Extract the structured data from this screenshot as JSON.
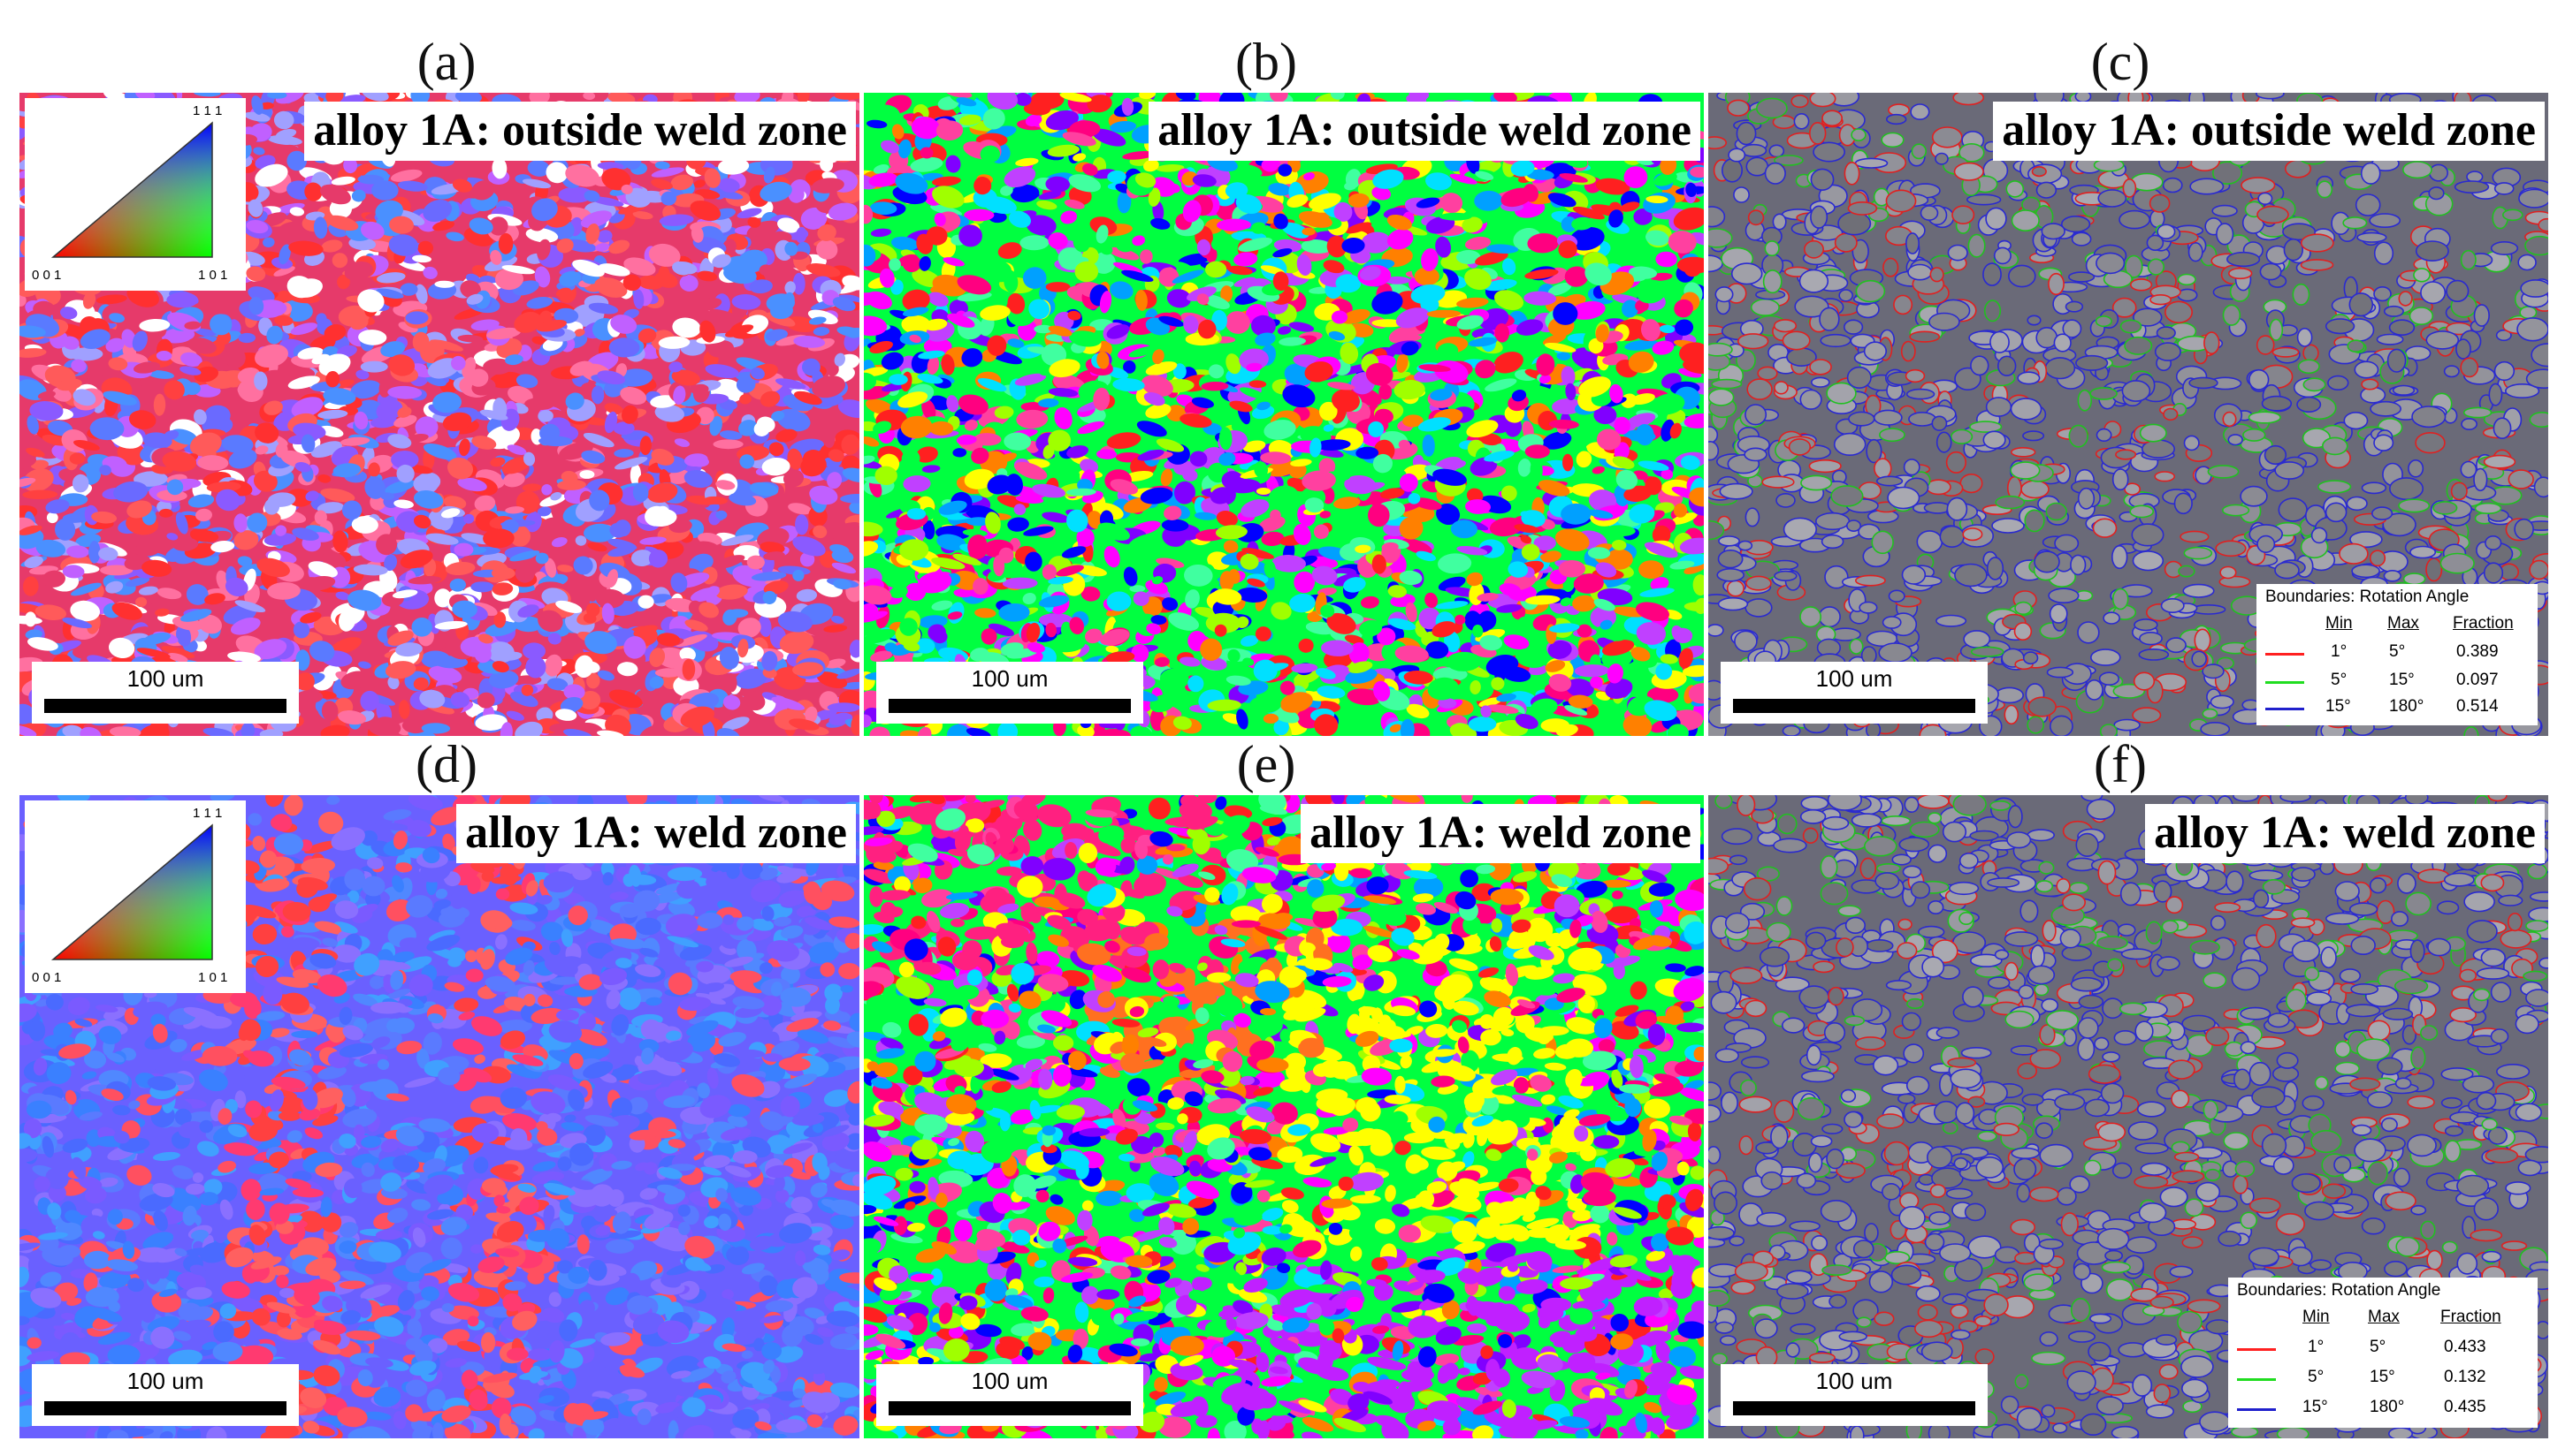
{
  "figure": {
    "panels": [
      {
        "caption": "(a)",
        "title": "alloy 1A: outside weld zone",
        "kind": "ipf-mixed",
        "scale_label": "100 um",
        "has_ipf_key": true
      },
      {
        "caption": "(b)",
        "title": "alloy 1A: outside weld zone",
        "kind": "grain-colors",
        "scale_label": "100 um"
      },
      {
        "caption": "(c)",
        "title": "alloy 1A: outside weld zone",
        "kind": "boundary",
        "scale_label": "100 um",
        "has_boundary_legend": true
      },
      {
        "caption": "(d)",
        "title": "alloy 1A: weld zone",
        "kind": "ipf-blue",
        "scale_label": "100 um",
        "has_ipf_key": true
      },
      {
        "caption": "(e)",
        "title": "alloy 1A: weld zone",
        "kind": "grain-colors-weld",
        "scale_label": "100 um"
      },
      {
        "caption": "(f)",
        "title": "alloy 1A: weld zone",
        "kind": "boundary",
        "scale_label": "100 um",
        "has_boundary_legend": true
      }
    ],
    "ipf_key": {
      "top": "1 1 1",
      "left": "0 0 1",
      "right": "1 0 1"
    },
    "boundary_legends": [
      {
        "title": "Boundaries: Rotation Angle",
        "headers": [
          "Min",
          "Max",
          "Fraction"
        ],
        "rows": [
          {
            "min": "1°",
            "max": "5°",
            "fraction": "0.389",
            "color": "#ff2020"
          },
          {
            "min": "5°",
            "max": "15°",
            "fraction": "0.097",
            "color": "#20dd20"
          },
          {
            "min": "15°",
            "max": "180°",
            "fraction": "0.514",
            "color": "#2020cc"
          }
        ]
      },
      {
        "title": "Boundaries: Rotation Angle",
        "headers": [
          "Min",
          "Max",
          "Fraction"
        ],
        "rows": [
          {
            "min": "1°",
            "max": "5°",
            "fraction": "0.433",
            "color": "#ff2020"
          },
          {
            "min": "5°",
            "max": "15°",
            "fraction": "0.132",
            "color": "#20dd20"
          },
          {
            "min": "15°",
            "max": "180°",
            "fraction": "0.435",
            "color": "#2020cc"
          }
        ]
      }
    ]
  }
}
